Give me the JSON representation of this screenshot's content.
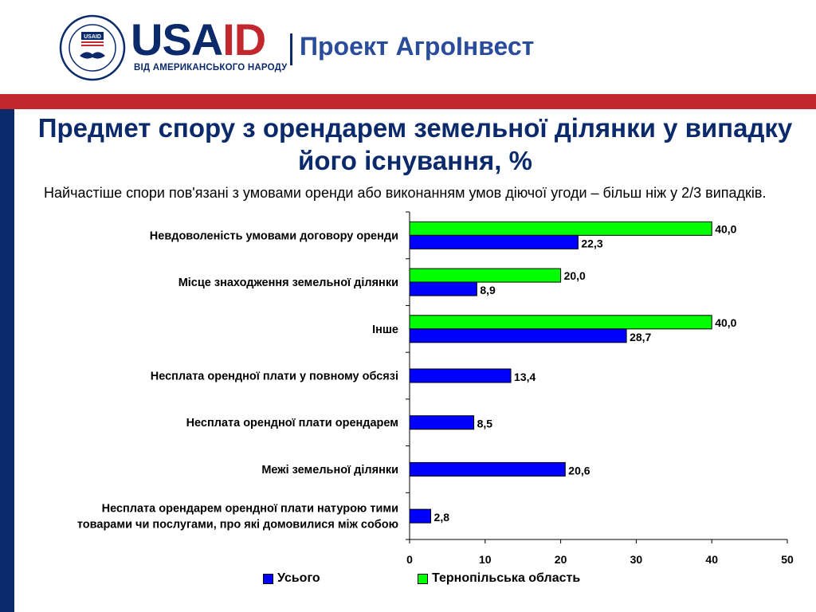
{
  "header": {
    "seal_text": "UNITED STATES AGENCY INTERNATIONAL DEVELOPMENT",
    "seal_inner": "USAID",
    "logo_usa": "USA",
    "logo_id": "ID",
    "logo_sub": "ВІД АМЕРИКАНСЬКОГО НАРОДУ",
    "project": "Проект АгроІнвест"
  },
  "title": "Предмет спору з орендарем земельної ділянки у випадку його існування, %",
  "subtitle": "Найчастіше спори пов'язані з умовами оренди або виконанням умов діючої угоди – більш ніж у 2/3 випадків.",
  "colors": {
    "navy": "#0b2a6b",
    "red": "#c1272d",
    "total": "#0000ff",
    "region": "#00ff00"
  },
  "chart_data": {
    "type": "bar",
    "orientation": "horizontal",
    "categories": [
      "Невдоволеність умовами договору оренди",
      "Місце знаходження земельної ділянки",
      "Інше",
      "Несплата орендної плати у повному обсязі",
      "Несплата орендної плати орендарем",
      "Межі земельної ділянки",
      "Несплата орендарем орендної плати натурою тими товарами чи послугами, про які домовилися між собою"
    ],
    "category_lines": [
      [
        "Невдоволеність умовами договору оренди"
      ],
      [
        "Місце знаходження земельної ділянки"
      ],
      [
        "Інше"
      ],
      [
        "Несплата орендної плати у повному обсязі"
      ],
      [
        "Несплата орендної плати орендарем"
      ],
      [
        "Межі земельної ділянки"
      ],
      [
        "Несплата орендарем орендної плати натурою тими",
        "товарами чи послугами, про які домовилися між собою"
      ]
    ],
    "series": [
      {
        "name": "Усього",
        "color": "#0000ff",
        "values": [
          22.3,
          8.9,
          28.7,
          13.4,
          8.5,
          20.6,
          2.8
        ],
        "labels": [
          "22,3",
          "8,9",
          "28,7",
          "13,4",
          "8,5",
          "20,6",
          "2,8"
        ]
      },
      {
        "name": "Тернопільська область",
        "color": "#00ff00",
        "values": [
          40.0,
          20.0,
          40.0,
          null,
          null,
          null,
          null
        ],
        "labels": [
          "40,0",
          "20,0",
          "40,0",
          null,
          null,
          null,
          null
        ]
      }
    ],
    "xlim": [
      0,
      50
    ],
    "xticks": [
      0,
      10,
      20,
      30,
      40,
      50
    ],
    "xtick_labels": [
      "0",
      "10",
      "20",
      "30",
      "40",
      "50"
    ],
    "legend_position": "bottom",
    "grid": false
  }
}
